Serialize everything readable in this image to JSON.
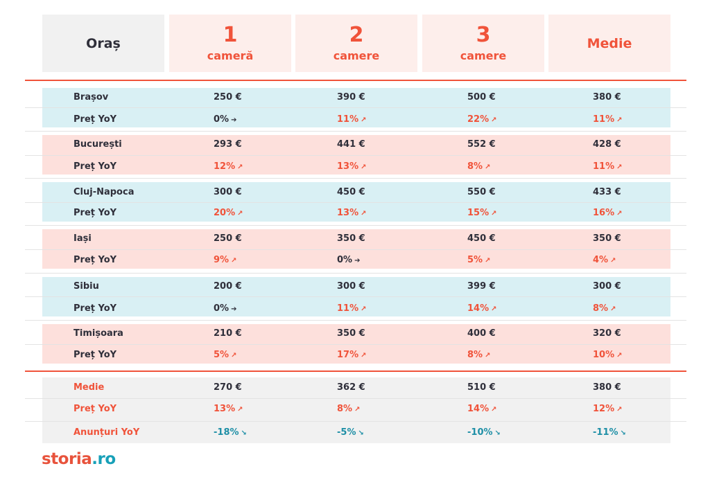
{
  "header": {
    "city_label": "Oraș",
    "col1_num": "1",
    "col1_word": "cameră",
    "col2_num": "2",
    "col2_word": "camere",
    "col3_num": "3",
    "col3_word": "camere",
    "col4": "Medie"
  },
  "cities": [
    {
      "name": "Brașov",
      "prices": [
        "250 €",
        "390 €",
        "500 €",
        "380 €"
      ],
      "yoy_label": "Preț YoY",
      "yoy": [
        "0%",
        "11%",
        "22%",
        "11%"
      ]
    },
    {
      "name": "București",
      "prices": [
        "293 €",
        "441 €",
        "552 €",
        "428 €"
      ],
      "yoy_label": "Preț YoY",
      "yoy": [
        "12%",
        "13%",
        "8%",
        "11%"
      ]
    },
    {
      "name": "Cluj-Napoca",
      "prices": [
        "300 €",
        "450 €",
        "550 €",
        "433 €"
      ],
      "yoy_label": "Preț YoY",
      "yoy": [
        "20%",
        "13%",
        "15%",
        "16%"
      ]
    },
    {
      "name": "Iași",
      "prices": [
        "250 €",
        "350 €",
        "450 €",
        "350 €"
      ],
      "yoy_label": "Preț YoY",
      "yoy": [
        "9%",
        "0%",
        "5%",
        "4%"
      ]
    },
    {
      "name": "Sibiu",
      "prices": [
        "200 €",
        "300 €",
        "399 €",
        "300 €"
      ],
      "yoy_label": "Preț YoY",
      "yoy": [
        "0%",
        "11%",
        "14%",
        "8%"
      ]
    },
    {
      "name": "Timișoara",
      "prices": [
        "210 €",
        "350 €",
        "400 €",
        "320 €"
      ],
      "yoy_label": "Preț YoY",
      "yoy": [
        "5%",
        "17%",
        "8%",
        "10%"
      ]
    }
  ],
  "summary": {
    "avg_label": "Medie",
    "avg": [
      "270 €",
      "362 €",
      "510 €",
      "380 €"
    ],
    "yoy_label": "Preț YoY",
    "yoy": [
      "13%",
      "8%",
      "14%",
      "12%"
    ],
    "ads_label": "Anunțuri YoY",
    "ads": [
      "-18%",
      "-5%",
      "-10%",
      "-11%"
    ]
  },
  "logo": {
    "part1": "storia",
    "part2": ".ro"
  },
  "colors": {
    "accent": "#f0533a",
    "teal": "#1e8fa6",
    "blue_band": "#d9f0f4",
    "pink_band": "#fde0dc",
    "grey_band": "#f1f1f1"
  }
}
